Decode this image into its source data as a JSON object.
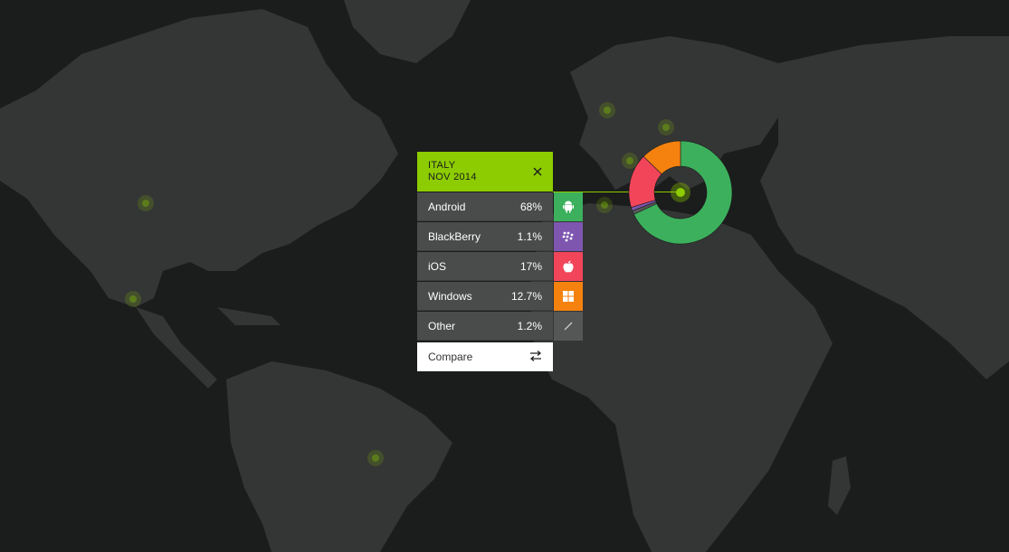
{
  "panel": {
    "country": "ITALY",
    "date": "NOV 2014",
    "compare_label": "Compare"
  },
  "rows": [
    {
      "name": "Android",
      "pct": "68%",
      "value": 68.0,
      "color": "#3cb05c",
      "icon": "android-icon"
    },
    {
      "name": "BlackBerry",
      "pct": "1.1%",
      "value": 1.1,
      "color": "#7e56b0",
      "icon": "blackberry-icon"
    },
    {
      "name": "iOS",
      "pct": "17%",
      "value": 17.0,
      "color": "#f2455a",
      "icon": "apple-icon"
    },
    {
      "name": "Windows",
      "pct": "12.7%",
      "value": 12.7,
      "color": "#f5820f",
      "icon": "windows-icon"
    },
    {
      "name": "Other",
      "pct": "1.2%",
      "value": 1.2,
      "color": "#555757",
      "icon": "other-slash-icon"
    }
  ],
  "colors": {
    "accent": "#8ccc00",
    "background": "#1b1c1c",
    "land": "#343535"
  }
}
